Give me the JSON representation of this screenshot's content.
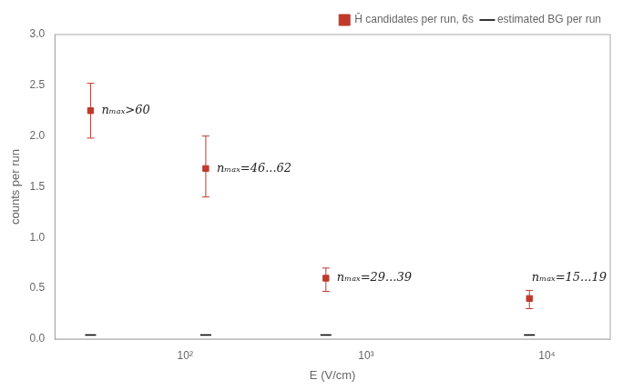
{
  "chart_data": {
    "type": "scatter",
    "xlabel": "E (V/cm)",
    "ylabel": "counts per run",
    "log": "x",
    "grid": false,
    "legend": "upper right",
    "xlim": [
      19.054607179632473,
      22387.211385683393
    ],
    "xticks": [
      {
        "value": 100,
        "label": "10²"
      },
      {
        "value": 1000,
        "label": "10³"
      },
      {
        "value": 10000,
        "label": "10⁴"
      }
    ],
    "ylim": [
      0.0,
      3.0
    ],
    "yticks": [
      {
        "value": 0,
        "label": "0.0"
      },
      {
        "value": 0.5,
        "label": "0.5"
      },
      {
        "value": 1,
        "label": "1.0"
      },
      {
        "value": 1.5,
        "label": "1.5"
      },
      {
        "value": 2,
        "label": "2.0"
      },
      {
        "value": 2.5,
        "label": "2.5"
      },
      {
        "value": 3,
        "label": "3.0"
      }
    ],
    "series": [
      {
        "name": "H̄ candidates per run, 6s",
        "color": "#c0392b",
        "marker": "square",
        "x": [
          30,
          130,
          600,
          8000
        ],
        "values": [
          2.25,
          1.68,
          0.6,
          0.4
        ],
        "yerr_up": [
          0.27,
          0.32,
          0.1,
          0.08
        ],
        "yerr_dn": [
          0.27,
          0.28,
          0.13,
          0.1
        ]
      },
      {
        "name": "estimated BG per run",
        "color": "#000000",
        "marker": "dash",
        "x": [
          30,
          130,
          600,
          8000
        ],
        "values": [
          0.04,
          0.04,
          0.04,
          0.04
        ]
      }
    ],
    "annotations": [
      {
        "text": "nₘₐₓ>60",
        "x": 30,
        "y": 2.25
      },
      {
        "text": "nₘₐₓ=46...62",
        "x": 130,
        "y": 1.68
      },
      {
        "text": "nₘₐₓ=29...39",
        "x": 600,
        "y": 0.6
      },
      {
        "text": "nₘₐₓ=15...19",
        "x": 8000,
        "y": 0.4
      }
    ]
  }
}
